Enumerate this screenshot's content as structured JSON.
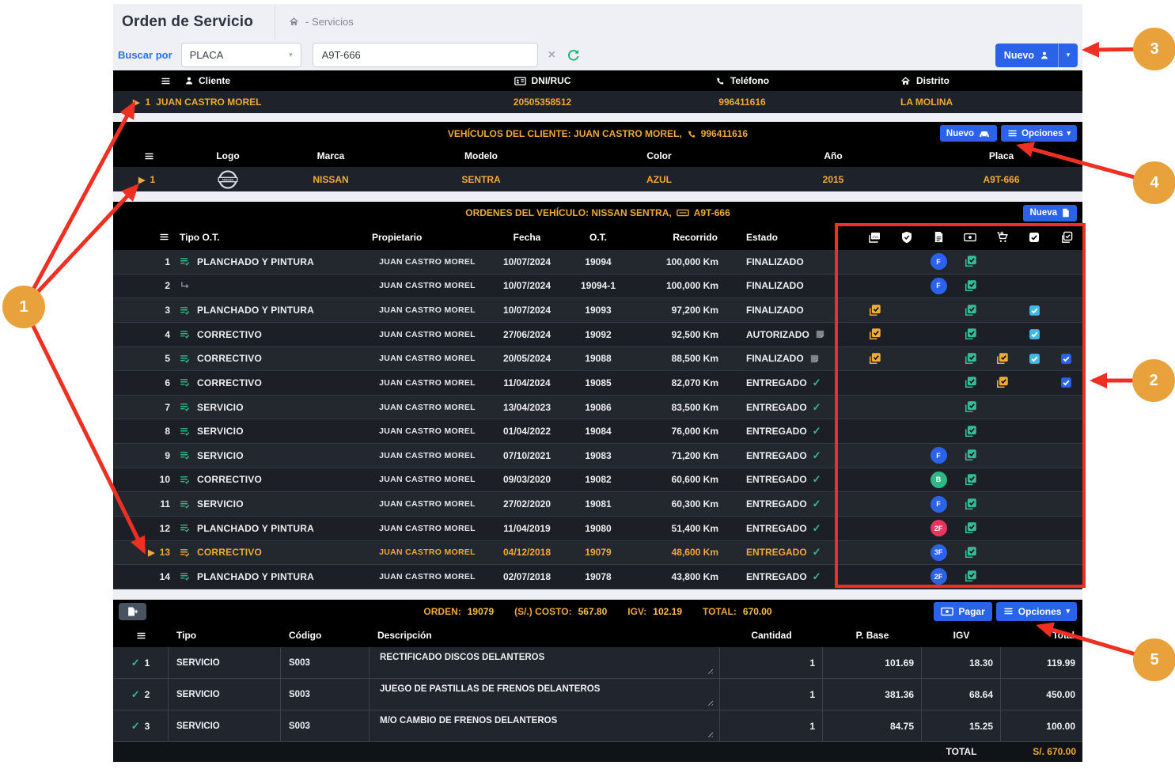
{
  "header": {
    "title": "Orden de Servicio",
    "breadcrumb": "- Servicios",
    "search_label": "Buscar por",
    "search_type": "PLACA",
    "search_value": "A9T-666",
    "new_button": "Nuevo"
  },
  "clients": {
    "headers": {
      "cliente": "Cliente",
      "dni": "DNI/RUC",
      "telefono": "Teléfono",
      "distrito": "Distrito"
    },
    "row": {
      "n": "1",
      "nombre": "JUAN CASTRO MOREL",
      "dni": "20505358512",
      "telefono": "996411616",
      "distrito": "LA MOLINA"
    }
  },
  "vehicles": {
    "title": "VEHÍCULOS DEL CLIENTE: JUAN CASTRO MOREL,",
    "title_phone": "996411616",
    "nuevo_button": "Nuevo",
    "opciones_button": "Opciones",
    "headers": {
      "logo": "Logo",
      "marca": "Marca",
      "modelo": "Modelo",
      "color": "Color",
      "anio": "Año",
      "placa": "Placa"
    },
    "row": {
      "n": "1",
      "marca": "NISSAN",
      "modelo": "SENTRA",
      "color": "AZUL",
      "anio": "2015",
      "placa": "A9T-666"
    }
  },
  "orders": {
    "title": "ORDENES DEL VEHÍCULO: NISSAN SENTRA,",
    "title_plate": "A9T-666",
    "new_button": "Nueva",
    "headers": {
      "tipo": "Tipo O.T.",
      "propietario": "Propietario",
      "fecha": "Fecha",
      "ot": "O.T.",
      "recorrido": "Recorrido",
      "estado": "Estado"
    },
    "icon_columns": [
      "photos-icon",
      "shield-check-icon",
      "document-icon",
      "payment-icon",
      "cart-plus-icon",
      "check-square-icon",
      "tasks-check-icon"
    ],
    "rows": [
      {
        "n": "1",
        "tipo": "PLANCHADO Y PINTURA",
        "sub": false,
        "selected": false,
        "propietario": "JUAN CASTRO MOREL",
        "fecha": "10/07/2024",
        "ot": "19094",
        "recorrido": "100,000 Km",
        "estado": "FINALIZADO",
        "estado_icon": "",
        "icons": {
          "photos": false,
          "doc": "F:blue",
          "pay": true,
          "cart": false,
          "chk_cyan": false,
          "chk_blue": false
        }
      },
      {
        "n": "2",
        "tipo": "",
        "sub": true,
        "selected": false,
        "propietario": "JUAN CASTRO MOREL",
        "fecha": "10/07/2024",
        "ot": "19094-1",
        "recorrido": "100,000 Km",
        "estado": "FINALIZADO",
        "estado_icon": "",
        "icons": {
          "photos": false,
          "doc": "F:blue",
          "pay": true,
          "cart": false,
          "chk_cyan": false,
          "chk_blue": false
        }
      },
      {
        "n": "3",
        "tipo": "PLANCHADO Y PINTURA",
        "sub": false,
        "selected": false,
        "propietario": "JUAN CASTRO MOREL",
        "fecha": "10/07/2024",
        "ot": "19093",
        "recorrido": "97,200 Km",
        "estado": "FINALIZADO",
        "estado_icon": "",
        "icons": {
          "photos": true,
          "doc": null,
          "pay": true,
          "cart": false,
          "chk_cyan": true,
          "chk_blue": false
        }
      },
      {
        "n": "4",
        "tipo": "CORRECTIVO",
        "sub": false,
        "selected": false,
        "propietario": "JUAN CASTRO MOREL",
        "fecha": "27/06/2024",
        "ot": "19092",
        "recorrido": "92,500 Km",
        "estado": "AUTORIZADO",
        "estado_icon": "note",
        "icons": {
          "photos": true,
          "doc": null,
          "pay": true,
          "cart": false,
          "chk_cyan": true,
          "chk_blue": false
        }
      },
      {
        "n": "5",
        "tipo": "CORRECTIVO",
        "sub": false,
        "selected": false,
        "propietario": "JUAN CASTRO MOREL",
        "fecha": "20/05/2024",
        "ot": "19088",
        "recorrido": "88,500 Km",
        "estado": "FINALIZADO",
        "estado_icon": "note",
        "icons": {
          "photos": true,
          "doc": null,
          "pay": true,
          "cart": true,
          "chk_cyan": true,
          "chk_blue": true
        }
      },
      {
        "n": "6",
        "tipo": "CORRECTIVO",
        "sub": false,
        "selected": false,
        "propietario": "JUAN CASTRO MOREL",
        "fecha": "11/04/2024",
        "ot": "19085",
        "recorrido": "82,070 Km",
        "estado": "ENTREGADO",
        "estado_icon": "check",
        "icons": {
          "photos": false,
          "doc": null,
          "pay": true,
          "cart": true,
          "chk_cyan": false,
          "chk_blue": true
        }
      },
      {
        "n": "7",
        "tipo": "SERVICIO",
        "sub": false,
        "selected": false,
        "propietario": "JUAN CASTRO MOREL",
        "fecha": "13/04/2023",
        "ot": "19086",
        "recorrido": "83,500 Km",
        "estado": "ENTREGADO",
        "estado_icon": "check",
        "icons": {
          "photos": false,
          "doc": null,
          "pay": true,
          "cart": false,
          "chk_cyan": false,
          "chk_blue": false
        }
      },
      {
        "n": "8",
        "tipo": "SERVICIO",
        "sub": false,
        "selected": false,
        "propietario": "JUAN CASTRO MOREL",
        "fecha": "01/04/2022",
        "ot": "19084",
        "recorrido": "76,000 Km",
        "estado": "ENTREGADO",
        "estado_icon": "check",
        "icons": {
          "photos": false,
          "doc": null,
          "pay": true,
          "cart": false,
          "chk_cyan": false,
          "chk_blue": false
        }
      },
      {
        "n": "9",
        "tipo": "SERVICIO",
        "sub": false,
        "selected": false,
        "propietario": "JUAN CASTRO MOREL",
        "fecha": "07/10/2021",
        "ot": "19083",
        "recorrido": "71,200 Km",
        "estado": "ENTREGADO",
        "estado_icon": "check",
        "icons": {
          "photos": false,
          "doc": "F:blue",
          "pay": true,
          "cart": false,
          "chk_cyan": false,
          "chk_blue": false
        }
      },
      {
        "n": "10",
        "tipo": "CORRECTIVO",
        "sub": false,
        "selected": false,
        "propietario": "JUAN CASTRO MOREL",
        "fecha": "09/03/2020",
        "ot": "19082",
        "recorrido": "60,600 Km",
        "estado": "ENTREGADO",
        "estado_icon": "check",
        "icons": {
          "photos": false,
          "doc": "B:green",
          "pay": true,
          "cart": false,
          "chk_cyan": false,
          "chk_blue": false
        }
      },
      {
        "n": "11",
        "tipo": "SERVICIO",
        "sub": false,
        "selected": false,
        "propietario": "JUAN CASTRO MOREL",
        "fecha": "27/02/2020",
        "ot": "19081",
        "recorrido": "60,300 Km",
        "estado": "ENTREGADO",
        "estado_icon": "check",
        "icons": {
          "photos": false,
          "doc": "F:blue",
          "pay": true,
          "cart": false,
          "chk_cyan": false,
          "chk_blue": false
        }
      },
      {
        "n": "12",
        "tipo": "PLANCHADO Y PINTURA",
        "sub": false,
        "selected": false,
        "propietario": "JUAN CASTRO MOREL",
        "fecha": "11/04/2019",
        "ot": "19080",
        "recorrido": "51,400 Km",
        "estado": "ENTREGADO",
        "estado_icon": "check",
        "icons": {
          "photos": false,
          "doc": "2F:red",
          "pay": true,
          "cart": false,
          "chk_cyan": false,
          "chk_blue": false
        }
      },
      {
        "n": "13",
        "tipo": "CORRECTIVO",
        "sub": false,
        "selected": true,
        "propietario": "JUAN CASTRO MOREL",
        "fecha": "04/12/2018",
        "ot": "19079",
        "recorrido": "48,600 Km",
        "estado": "ENTREGADO",
        "estado_icon": "check",
        "icons": {
          "photos": false,
          "doc": "3F:blue",
          "pay": true,
          "cart": false,
          "chk_cyan": false,
          "chk_blue": false
        }
      },
      {
        "n": "14",
        "tipo": "PLANCHADO Y PINTURA",
        "sub": false,
        "selected": false,
        "propietario": "JUAN CASTRO MOREL",
        "fecha": "02/07/2018",
        "ot": "19078",
        "recorrido": "43,800 Km",
        "estado": "ENTREGADO",
        "estado_icon": "check",
        "icons": {
          "photos": false,
          "doc": "2F:blue",
          "pay": true,
          "cart": false,
          "chk_cyan": false,
          "chk_blue": false
        }
      }
    ]
  },
  "detail": {
    "bar": {
      "orden_label": "ORDEN:",
      "orden": "19079",
      "costo_label": "(S/.) COSTO:",
      "costo": "567.80",
      "igv_label": "IGV:",
      "igv": "102.19",
      "total_label": "TOTAL:",
      "total": "670.00",
      "pagar": "Pagar",
      "opciones": "Opciones"
    },
    "headers": {
      "tipo": "Tipo",
      "codigo": "Código",
      "descripcion": "Descripción",
      "cantidad": "Cantidad",
      "pbase": "P. Base",
      "igv": "IGV",
      "total": "Total"
    },
    "rows": [
      {
        "n": "1",
        "tipo": "SERVICIO",
        "codigo": "S003",
        "descripcion": "RECTIFICADO DISCOS DELANTEROS",
        "cantidad": "1",
        "pbase": "101.69",
        "igv": "18.30",
        "total": "119.99"
      },
      {
        "n": "2",
        "tipo": "SERVICIO",
        "codigo": "S003",
        "descripcion": "JUEGO DE PASTILLAS DE FRENOS DELANTEROS",
        "cantidad": "1",
        "pbase": "381.36",
        "igv": "68.64",
        "total": "450.00"
      },
      {
        "n": "3",
        "tipo": "SERVICIO",
        "codigo": "S003",
        "descripcion": "M/O CAMBIO DE FRENOS DELANTEROS",
        "cantidad": "1",
        "pbase": "84.75",
        "igv": "15.25",
        "total": "100.00"
      }
    ],
    "footer": {
      "label": "TOTAL",
      "value": "S/. 670.00"
    }
  },
  "annotations": {
    "badges": [
      "1",
      "2",
      "3",
      "4",
      "5"
    ]
  },
  "colors": {
    "accent_orange": "#f0a93a",
    "button_blue": "#2b63e8",
    "annotation_red": "#ee3023",
    "annotation_orange": "#e9a23b",
    "green_icon": "#35bd96",
    "cyan_check": "#41b9e8",
    "badge_red": "#ea3560",
    "badge_green": "#2eb886"
  }
}
